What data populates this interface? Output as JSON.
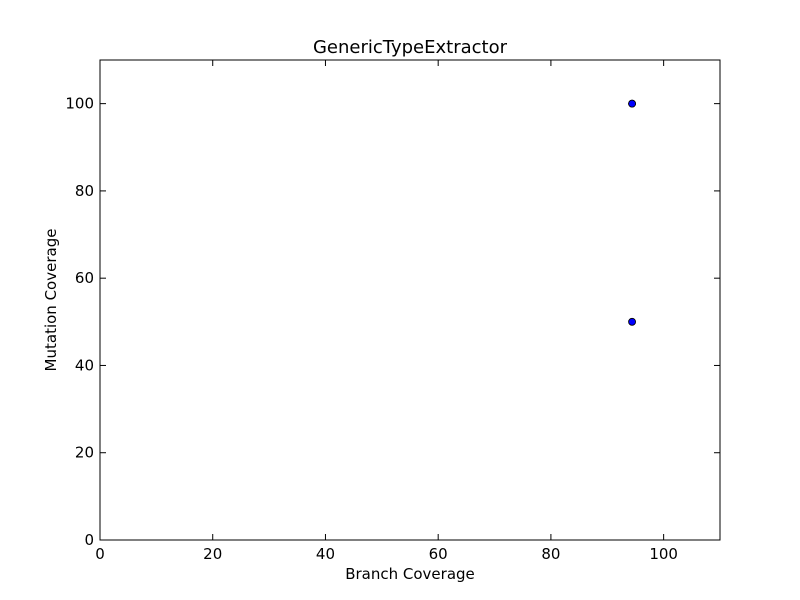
{
  "chart_data": {
    "type": "scatter",
    "title": "GenericTypeExtractor",
    "xlabel": "Branch Coverage",
    "ylabel": "Mutation Coverage",
    "xlim": [
      0,
      110
    ],
    "ylim": [
      0,
      110
    ],
    "xticks": [
      0,
      20,
      40,
      60,
      80,
      100
    ],
    "yticks": [
      0,
      20,
      40,
      60,
      80,
      100
    ],
    "grid": false,
    "marker_color": "#0000ff",
    "series": [
      {
        "points": [
          {
            "x": 94.4,
            "y": 100
          },
          {
            "x": 94.4,
            "y": 100
          },
          {
            "x": 94.4,
            "y": 50
          }
        ]
      }
    ]
  }
}
